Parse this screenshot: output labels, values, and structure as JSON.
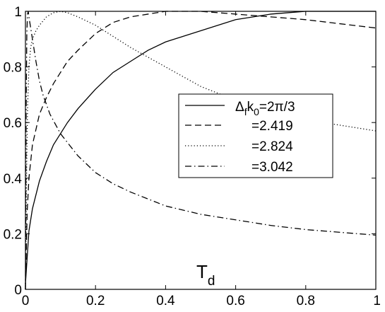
{
  "chart_data": {
    "type": "line",
    "title": "",
    "xlabel": "T",
    "xlabel_subscript": "d",
    "ylabel": "",
    "xlim": [
      0,
      1
    ],
    "ylim": [
      0,
      1
    ],
    "xticks": [
      "0",
      "0.2",
      "0.4",
      "0.6",
      "0.8",
      "1"
    ],
    "yticks": [
      "0",
      "0.2",
      "0.4",
      "0.6",
      "0.8",
      "1"
    ],
    "grid": false,
    "legend_position": "center-right",
    "legend_title_parts": {
      "delta": "Δ",
      "f": "f",
      "k": "k",
      "zero": "0",
      "value": "=2π/3"
    },
    "series": [
      {
        "name": "=2π/3",
        "style": "solid",
        "x": [
          0,
          0.01,
          0.02,
          0.04,
          0.06,
          0.08,
          0.1,
          0.12,
          0.15,
          0.2,
          0.25,
          0.3,
          0.35,
          0.4,
          0.45,
          0.5,
          0.55,
          0.6,
          0.65,
          0.7,
          0.75,
          0.8,
          0.85,
          0.9,
          0.95,
          1.0
        ],
        "y": [
          0.02,
          0.21,
          0.29,
          0.39,
          0.46,
          0.52,
          0.56,
          0.6,
          0.65,
          0.72,
          0.78,
          0.82,
          0.86,
          0.89,
          0.91,
          0.93,
          0.95,
          0.97,
          0.98,
          0.99,
          0.995,
          1.0,
          1.0,
          1.0,
          1.0,
          1.0
        ]
      },
      {
        "name": "=2.419",
        "style": "dashed",
        "x": [
          0,
          0.005,
          0.01,
          0.02,
          0.04,
          0.06,
          0.08,
          0.1,
          0.12,
          0.15,
          0.2,
          0.25,
          0.3,
          0.35,
          0.4,
          0.45,
          0.5,
          0.6,
          0.7,
          0.8,
          0.9,
          1.0
        ],
        "y": [
          0.0,
          0.28,
          0.4,
          0.52,
          0.63,
          0.69,
          0.74,
          0.78,
          0.82,
          0.86,
          0.92,
          0.96,
          0.98,
          0.99,
          1.0,
          1.0,
          1.0,
          0.99,
          0.98,
          0.97,
          0.955,
          0.94
        ]
      },
      {
        "name": "=2.824",
        "style": "dotted",
        "x": [
          0,
          0.003,
          0.006,
          0.01,
          0.015,
          0.02,
          0.03,
          0.04,
          0.06,
          0.08,
          0.1,
          0.12,
          0.15,
          0.2,
          0.25,
          0.3,
          0.4,
          0.5,
          0.6,
          0.7,
          0.8,
          0.9,
          1.0
        ],
        "y": [
          0.0,
          0.4,
          0.65,
          0.8,
          0.87,
          0.9,
          0.93,
          0.95,
          0.98,
          0.995,
          1.0,
          0.995,
          0.98,
          0.95,
          0.91,
          0.87,
          0.8,
          0.73,
          0.68,
          0.64,
          0.61,
          0.59,
          0.57
        ]
      },
      {
        "name": "=3.042",
        "style": "dashdot",
        "x": [
          0,
          0.002,
          0.004,
          0.006,
          0.008,
          0.01,
          0.015,
          0.02,
          0.03,
          0.04,
          0.05,
          0.07,
          0.1,
          0.15,
          0.2,
          0.25,
          0.3,
          0.4,
          0.5,
          0.6,
          0.7,
          0.8,
          0.9,
          1.0
        ],
        "y": [
          0.0,
          0.65,
          0.92,
          0.99,
          1.0,
          0.98,
          0.94,
          0.9,
          0.82,
          0.75,
          0.7,
          0.63,
          0.56,
          0.48,
          0.42,
          0.38,
          0.35,
          0.3,
          0.27,
          0.25,
          0.23,
          0.215,
          0.205,
          0.195
        ]
      }
    ]
  }
}
